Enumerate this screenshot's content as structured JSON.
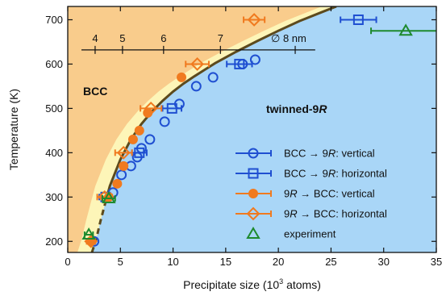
{
  "chart_data": {
    "type": "scatter",
    "xlabel": "Precipitate size (10³ atoms)",
    "ylabel": "Temperature (K)",
    "xlim": [
      0,
      35
    ],
    "ylim": [
      175,
      730
    ],
    "x_ticks": [
      0,
      5,
      10,
      15,
      20,
      25,
      30,
      35
    ],
    "y_ticks": [
      200,
      300,
      400,
      500,
      600,
      700
    ],
    "x_tick_labels": [
      "0",
      "5",
      "10",
      "15",
      "20",
      "25",
      "30",
      "35"
    ],
    "y_tick_labels": [
      "200",
      "300",
      "400",
      "500",
      "600",
      "700"
    ],
    "top_scale": {
      "unit_label": "∅ 8 nm",
      "ticks": [
        {
          "label": "4",
          "x": 2.6
        },
        {
          "label": "5",
          "x": 5.2
        },
        {
          "label": "6",
          "x": 9.1
        },
        {
          "label": "7",
          "x": 14.5
        },
        {
          "label": "",
          "x": 21.6
        }
      ],
      "axis_range": [
        1.3,
        23.5
      ],
      "y": 632
    },
    "region_labels": {
      "left": "BCC",
      "right": "twinned-9R"
    },
    "boundary_curve": {
      "solid": [
        [
          3.6,
          290
        ],
        [
          4,
          325
        ],
        [
          5,
          385
        ],
        [
          6,
          430
        ],
        [
          7,
          465
        ],
        [
          8,
          493
        ],
        [
          9,
          517
        ],
        [
          10,
          538
        ],
        [
          11,
          556
        ],
        [
          12,
          572
        ],
        [
          14,
          602
        ],
        [
          16,
          628
        ],
        [
          18,
          652
        ],
        [
          20,
          675
        ],
        [
          22,
          697
        ],
        [
          24,
          716
        ],
        [
          25.5,
          730
        ]
      ],
      "dashed": [
        [
          2.3,
          175
        ],
        [
          2.7,
          205
        ],
        [
          3.1,
          245
        ],
        [
          3.6,
          290
        ]
      ]
    },
    "colors": {
      "bcc_region": "#f9cc8c",
      "band_region": "#fdf5b8",
      "ninr_region": "#a9d6f7",
      "curve": "#5c4a1d",
      "blue": "#1f4fd1",
      "orange": "#f07a1f",
      "green": "#1e8a2e"
    },
    "legend": {
      "placement": "lower-right",
      "entries": [
        {
          "label": "BCC → 9R: vertical",
          "marker": "circle-open",
          "color": "#1f4fd1"
        },
        {
          "label": "BCC → 9R: horizontal",
          "marker": "square-open",
          "color": "#1f4fd1"
        },
        {
          "label": "9R → BCC: vertical",
          "marker": "circle-filled",
          "color": "#f07a1f"
        },
        {
          "label": "9R → BCC: horizontal",
          "marker": "diamond-open",
          "color": "#f07a1f"
        },
        {
          "label": "experiment",
          "marker": "triangle-open",
          "color": "#1e8a2e"
        }
      ]
    },
    "series": [
      {
        "name": "BCC → 9R: vertical",
        "marker": "circle-open",
        "color": "#1f4fd1",
        "points": [
          {
            "x": 2.5,
            "y": 200
          },
          {
            "x": 4.3,
            "y": 310
          },
          {
            "x": 5.1,
            "y": 350
          },
          {
            "x": 6.0,
            "y": 370
          },
          {
            "x": 6.6,
            "y": 390
          },
          {
            "x": 7.0,
            "y": 410
          },
          {
            "x": 7.8,
            "y": 430
          },
          {
            "x": 9.2,
            "y": 470
          },
          {
            "x": 10.6,
            "y": 510
          },
          {
            "x": 12.2,
            "y": 550
          },
          {
            "x": 13.8,
            "y": 570
          },
          {
            "x": 16.6,
            "y": 600
          },
          {
            "x": 17.8,
            "y": 610
          }
        ]
      },
      {
        "name": "BCC → 9R: horizontal",
        "marker": "square-open",
        "color": "#1f4fd1",
        "points": [
          {
            "x": 3.6,
            "y": 300,
            "xerr": 0.6
          },
          {
            "x": 6.8,
            "y": 400,
            "xerr": 0.7
          },
          {
            "x": 9.9,
            "y": 500,
            "xerr": 0.9
          },
          {
            "x": 16.3,
            "y": 600,
            "xerr": 1.2
          },
          {
            "x": 27.6,
            "y": 700,
            "xerr": 1.7
          }
        ]
      },
      {
        "name": "9R → BCC: vertical",
        "marker": "circle-filled",
        "color": "#f07a1f",
        "points": [
          {
            "x": 2.2,
            "y": 200
          },
          {
            "x": 3.9,
            "y": 300
          },
          {
            "x": 4.7,
            "y": 330
          },
          {
            "x": 5.3,
            "y": 370
          },
          {
            "x": 6.2,
            "y": 430
          },
          {
            "x": 6.8,
            "y": 450
          },
          {
            "x": 7.6,
            "y": 490
          },
          {
            "x": 10.8,
            "y": 570
          }
        ]
      },
      {
        "name": "9R → BCC: horizontal",
        "marker": "diamond-open",
        "color": "#f07a1f",
        "points": [
          {
            "x": 2.2,
            "y": 200,
            "xerr": 0.4
          },
          {
            "x": 3.5,
            "y": 300,
            "xerr": 0.7
          },
          {
            "x": 5.3,
            "y": 400,
            "xerr": 0.8
          },
          {
            "x": 7.9,
            "y": 500,
            "xerr": 1.0
          },
          {
            "x": 12.3,
            "y": 600,
            "xerr": 1.1
          },
          {
            "x": 17.7,
            "y": 700,
            "xerr": 1.0
          }
        ]
      },
      {
        "name": "experiment",
        "marker": "triangle-open",
        "color": "#1e8a2e",
        "points": [
          {
            "x": 2.0,
            "y": 215,
            "xerr": 0.4
          },
          {
            "x": 3.9,
            "y": 297,
            "xerr": 0.6
          },
          {
            "x": 32.1,
            "y": 675,
            "xerr": 3.3
          }
        ]
      }
    ]
  }
}
